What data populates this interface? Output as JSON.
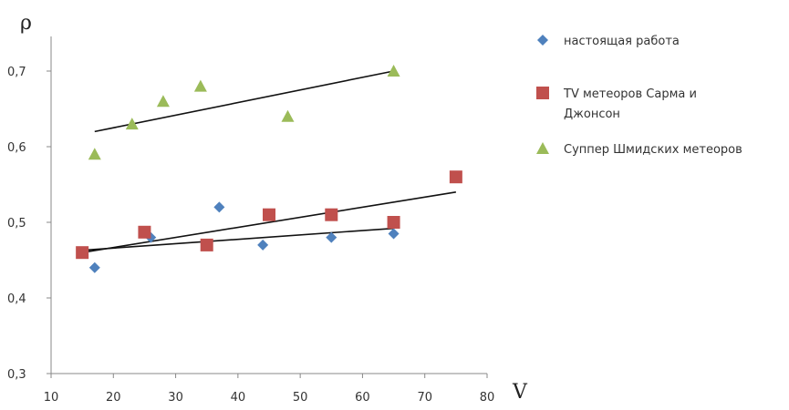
{
  "chart_data": {
    "type": "scatter",
    "ylabel": "ρ",
    "xlabel": "V",
    "xlim": [
      10,
      80
    ],
    "ylim": [
      0.3,
      0.75
    ],
    "x_ticks": [
      10,
      20,
      30,
      40,
      50,
      60,
      70,
      80
    ],
    "x_tick_labels": [
      "10",
      "20",
      "30",
      "40",
      "50",
      "60",
      "70",
      "80"
    ],
    "y_ticks": [
      0.3,
      0.4,
      0.5,
      0.6,
      0.7
    ],
    "y_tick_labels": [
      "0,3",
      "0,4",
      "0,5",
      "0,6",
      "0,7"
    ],
    "grid": false,
    "legend_position": "right",
    "series": [
      {
        "name": "настоящая работа",
        "marker": "diamond",
        "color": "#4f81bd",
        "points": [
          [
            17,
            0.44
          ],
          [
            26,
            0.48
          ],
          [
            37,
            0.52
          ],
          [
            44,
            0.47
          ],
          [
            55,
            0.48
          ],
          [
            65,
            0.485
          ]
        ],
        "trendline": [
          [
            15,
            0.463
          ],
          [
            65,
            0.492
          ]
        ]
      },
      {
        "name": "TV метеоров Сарма и Джонсон",
        "legend_lines": [
          "TV метеоров Сарма и",
          "Джонсон"
        ],
        "marker": "square",
        "color": "#c0504d",
        "points": [
          [
            15,
            0.46
          ],
          [
            25,
            0.487
          ],
          [
            35,
            0.47
          ],
          [
            45,
            0.51
          ],
          [
            55,
            0.51
          ],
          [
            65,
            0.5
          ],
          [
            75,
            0.56
          ]
        ],
        "trendline": [
          [
            15,
            0.46
          ],
          [
            75,
            0.54
          ]
        ]
      },
      {
        "name": "Суппер Шмидских метеоров",
        "marker": "triangle",
        "color": "#9bbb59",
        "points": [
          [
            17,
            0.59
          ],
          [
            23,
            0.63
          ],
          [
            28,
            0.66
          ],
          [
            34,
            0.68
          ],
          [
            48,
            0.64
          ],
          [
            65,
            0.7
          ]
        ],
        "trendline": [
          [
            17,
            0.62
          ],
          [
            65,
            0.7
          ]
        ]
      }
    ]
  }
}
